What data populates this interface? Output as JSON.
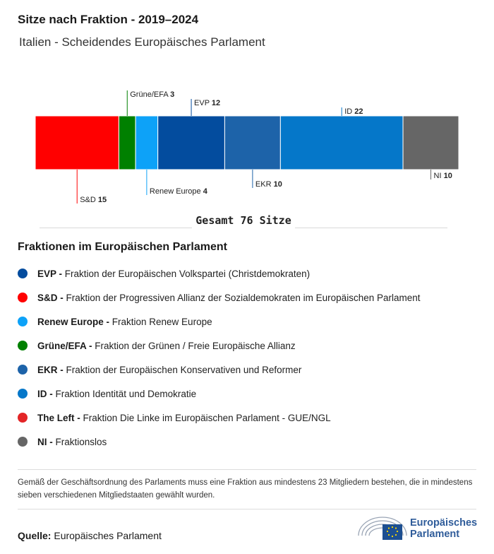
{
  "title": "Sitze nach Fraktion - 2019–2024",
  "subtitle": "Italien - Scheidendes Europäisches Parlament",
  "chart_data": {
    "type": "bar",
    "orientation": "stacked-horizontal",
    "total_label": "Gesamt 76 Sitze",
    "total": 76,
    "segments": [
      {
        "name": "S&D",
        "value": 15,
        "color": "#ff0000",
        "label_side": "below"
      },
      {
        "name": "Grüne/EFA",
        "value": 3,
        "color": "#008000",
        "label_side": "above"
      },
      {
        "name": "Renew Europe",
        "value": 4,
        "color": "#0da2f8",
        "label_side": "below"
      },
      {
        "name": "EVP",
        "value": 12,
        "color": "#034c9e",
        "label_side": "above"
      },
      {
        "name": "EKR",
        "value": 10,
        "color": "#1d63a9",
        "label_side": "below"
      },
      {
        "name": "ID",
        "value": 22,
        "color": "#0577c9",
        "label_side": "above"
      },
      {
        "name": "NI",
        "value": 10,
        "color": "#666666",
        "label_side": "below"
      }
    ]
  },
  "legend": {
    "title": "Fraktionen im Europäischen Parlament",
    "items": [
      {
        "abbr": "EVP -",
        "desc": " Fraktion der Europäischen Volkspartei (Christdemokraten)",
        "color": "#034c9e"
      },
      {
        "abbr": "S&D -",
        "desc": " Fraktion der Progressiven Allianz der Sozialdemokraten im Europäischen Parlament",
        "color": "#ff0000"
      },
      {
        "abbr": "Renew Europe -",
        "desc": " Fraktion Renew Europe",
        "color": "#0da2f8"
      },
      {
        "abbr": "Grüne/EFA -",
        "desc": " Fraktion der Grünen / Freie Europäische Allianz",
        "color": "#008000"
      },
      {
        "abbr": "EKR -",
        "desc": " Fraktion der Europäischen Konservativen und Reformer",
        "color": "#1d63a9"
      },
      {
        "abbr": "ID -",
        "desc": " Fraktion Identität und Demokratie",
        "color": "#0577c9"
      },
      {
        "abbr": "The Left -",
        "desc": " Fraktion Die Linke im Europäischen Parlament - GUE/NGL",
        "color": "#e32527"
      },
      {
        "abbr": "NI -",
        "desc": " Fraktionslos",
        "color": "#666666"
      }
    ]
  },
  "note": "Gemäß der Geschäftsordnung des Parlaments muss eine Fraktion aus mindestens 23 Mitgliedern bestehen, die in mindestens sieben verschiedenen Mitgliedstaaten gewählt wurden.",
  "source": {
    "label": "Quelle:",
    "value": " Europäisches Parlament"
  },
  "logo": {
    "line1": "Europäisches",
    "line2": "Parlament"
  }
}
